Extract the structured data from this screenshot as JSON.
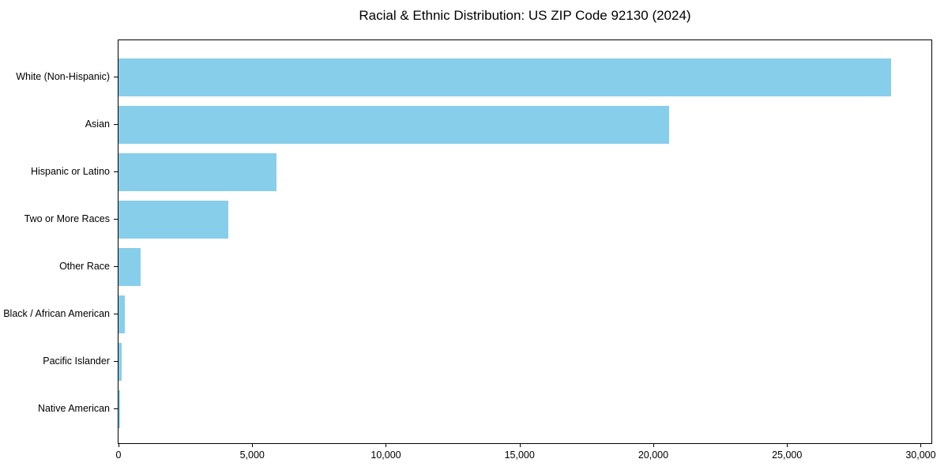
{
  "chart_data": {
    "type": "bar",
    "orientation": "horizontal",
    "title": "Racial & Ethnic Distribution: US ZIP Code 92130 (2024)",
    "categories": [
      "White (Non-Hispanic)",
      "Asian",
      "Hispanic or Latino",
      "Two or More Races",
      "Other Race",
      "Black / African American",
      "Pacific Islander",
      "Native American"
    ],
    "values": [
      28900,
      20600,
      5900,
      4120,
      820,
      250,
      110,
      60
    ],
    "xlabel": "",
    "ylabel": "",
    "xlim": [
      0,
      30400
    ],
    "xticks": {
      "values": [
        0,
        5000,
        10000,
        15000,
        20000,
        25000,
        30000
      ],
      "labels": [
        "0",
        "5,000",
        "10,000",
        "15,000",
        "20,000",
        "25,000",
        "30,000"
      ]
    },
    "bar_color": "#87ceeb",
    "axis_color": "#000000",
    "background_color": "#ffffff",
    "grid": false,
    "legend": null
  }
}
